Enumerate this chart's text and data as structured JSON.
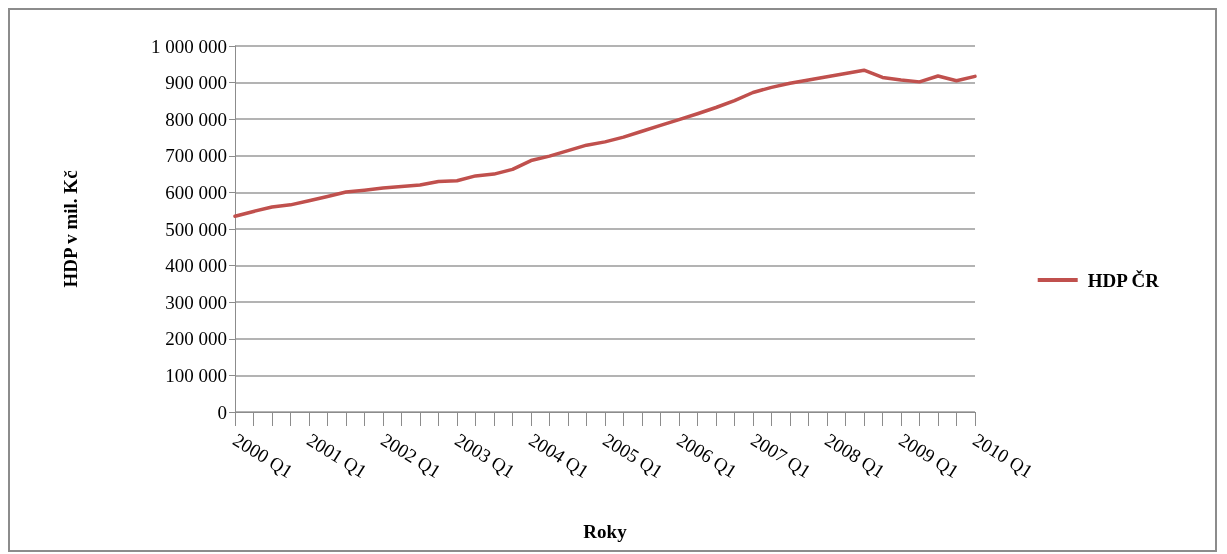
{
  "chart_data": {
    "type": "line",
    "xlabel": "Roky",
    "ylabel": "HDP v mil. Kč",
    "categories": [
      "2000 Q1",
      null,
      null,
      null,
      "2001 Q1",
      null,
      null,
      null,
      "2002 Q1",
      null,
      null,
      null,
      "2003 Q1",
      null,
      null,
      null,
      "2004 Q1",
      null,
      null,
      null,
      "2005 Q1",
      null,
      null,
      null,
      "2006 Q1",
      null,
      null,
      null,
      "2007 Q1",
      null,
      null,
      null,
      "2008 Q1",
      null,
      null,
      null,
      "2009 Q1",
      null,
      null,
      null,
      "2010 Q1"
    ],
    "series": [
      {
        "name": "HDP ČR",
        "color": "#c0504d",
        "values": [
          535000,
          548000,
          560000,
          566000,
          577000,
          589000,
          601000,
          606000,
          612000,
          616000,
          620000,
          630000,
          632000,
          645000,
          650000,
          663000,
          687000,
          699000,
          714000,
          729000,
          738000,
          751000,
          767000,
          783000,
          799000,
          815000,
          832000,
          851000,
          873000,
          887000,
          898000,
          907000,
          916000,
          925000,
          934000,
          914000,
          907000,
          902000,
          918000,
          905000,
          917000
        ]
      }
    ],
    "ylim": [
      0,
      1000000
    ],
    "yticks": [
      {
        "value": 0,
        "label": "0"
      },
      {
        "value": 100000,
        "label": "100 000"
      },
      {
        "value": 200000,
        "label": "200 000"
      },
      {
        "value": 300000,
        "label": "300 000"
      },
      {
        "value": 400000,
        "label": "400 000"
      },
      {
        "value": 500000,
        "label": "500 000"
      },
      {
        "value": 600000,
        "label": "600 000"
      },
      {
        "value": 700000,
        "label": "700 000"
      },
      {
        "value": 800000,
        "label": "800 000"
      },
      {
        "value": 900000,
        "label": "900 000"
      },
      {
        "value": 1000000,
        "label": "1 000 000"
      }
    ],
    "grid": "y",
    "legend": "right",
    "marker": "none",
    "line_style": "solid"
  }
}
